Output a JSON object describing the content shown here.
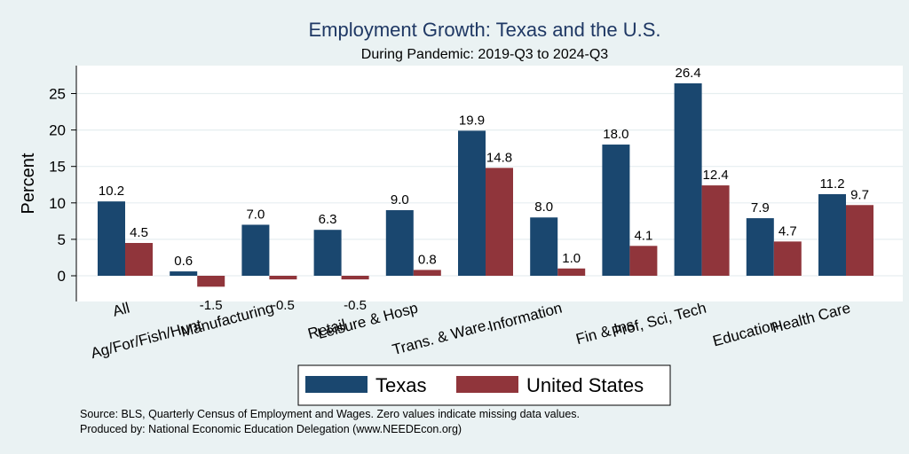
{
  "chart_data": {
    "type": "bar",
    "title": "Employment Growth: Texas and the U.S.",
    "subtitle": "During Pandemic: 2019-Q3 to 2024-Q3",
    "xlabel": "",
    "ylabel": "Percent",
    "ylim": [
      -3.5,
      28
    ],
    "yticks": [
      "0",
      "5",
      "10",
      "15",
      "20",
      "25"
    ],
    "grid": true,
    "categories": [
      "All",
      "Ag/For/Fish/Hunt",
      "Manufacturing",
      "Retail",
      "Leisure & Hosp",
      "Trans. & Ware.",
      "Information",
      "Fin & Ins",
      "Prof, Sci, Tech",
      "Education",
      "Health Care"
    ],
    "series": [
      {
        "name": "Texas",
        "color": "#1a476f",
        "values": [
          10.2,
          0.6,
          7.0,
          6.3,
          9.0,
          19.9,
          8.0,
          18.0,
          26.4,
          7.9,
          11.2
        ],
        "labels": [
          "10.2",
          "0.6",
          "7.0",
          "6.3",
          "9.0",
          "19.9",
          "8.0",
          "18.0",
          "26.4",
          "7.9",
          "11.2"
        ]
      },
      {
        "name": "United States",
        "color": "#90353b",
        "values": [
          4.5,
          -1.5,
          -0.5,
          -0.5,
          0.8,
          14.8,
          1.0,
          4.1,
          12.4,
          4.7,
          9.7
        ],
        "labels": [
          "4.5",
          "-1.5",
          "-0.5",
          "-0.5",
          "0.8",
          "14.8",
          "1.0",
          "4.1",
          "12.4",
          "4.7",
          "9.7"
        ]
      }
    ],
    "legend_position": "bottom",
    "notes": [
      "Source: BLS, Quarterly Census of Employment and Wages. Zero values indicate missing data values.",
      "Produced by: National Economic Education Delegation (www.NEEDEcon.org)"
    ]
  }
}
